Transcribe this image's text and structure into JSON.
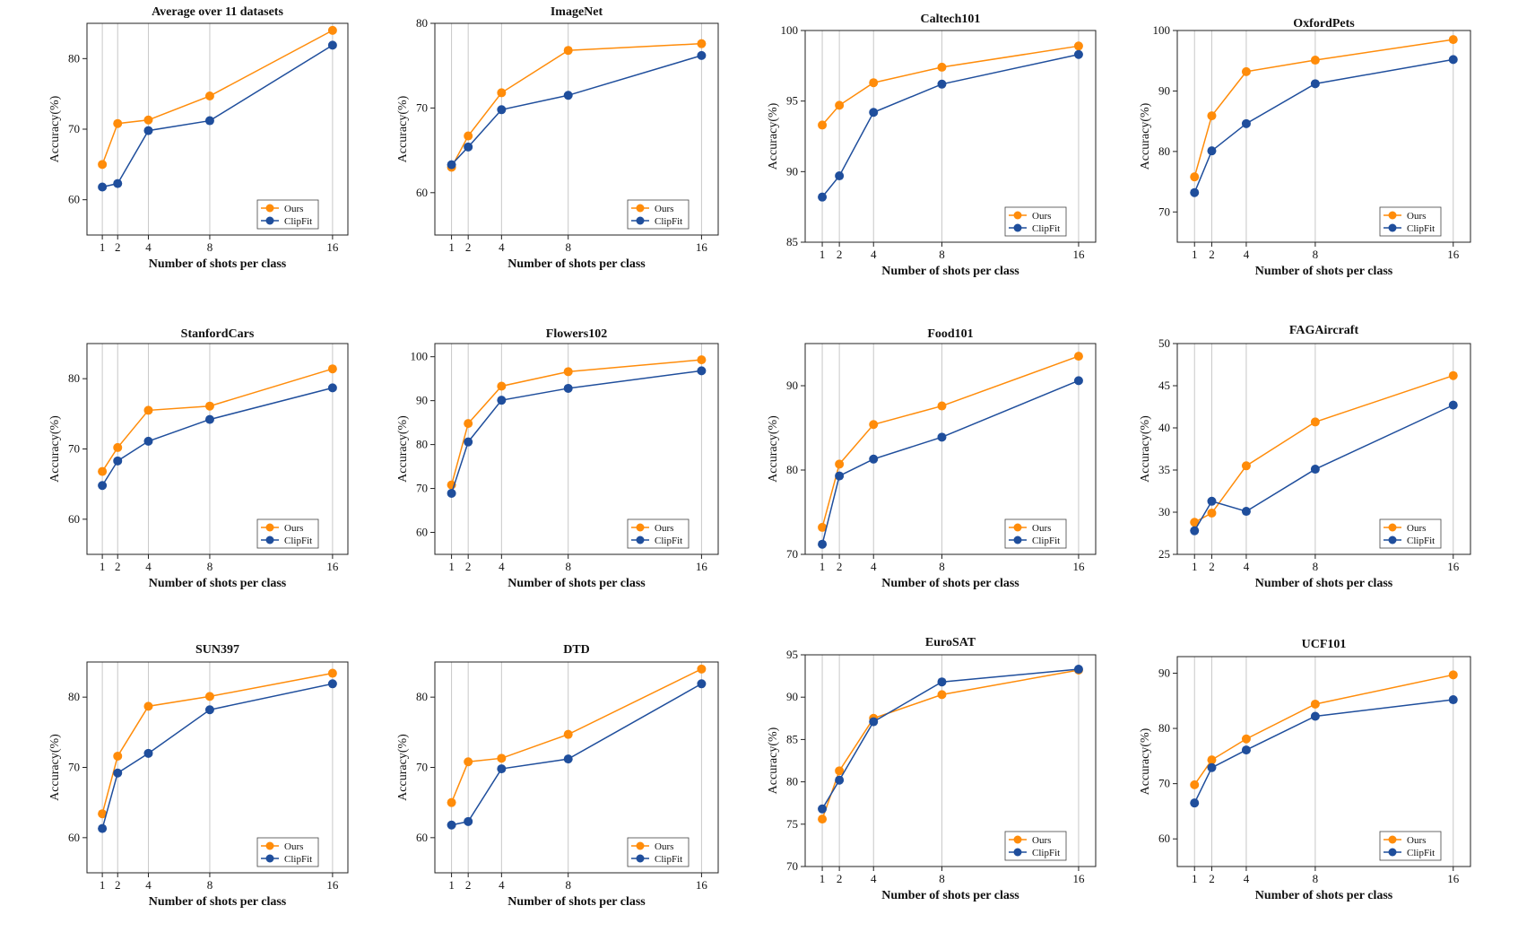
{
  "legend_labels": [
    "Ours",
    "ClipFit"
  ],
  "colors": {
    "ours": "#ff8c0a",
    "clipfit": "#1f4e9c",
    "grid": "#c8c8c8",
    "axis": "#222222"
  },
  "chart_data": [
    {
      "type": "line",
      "title": "Average over 11 datasets",
      "xlabel": "Number of shots per class",
      "ylabel": "Accuracy(%)",
      "x": [
        1,
        2,
        4,
        8,
        16
      ],
      "xlim": [
        0,
        17
      ],
      "ylim": [
        55,
        85
      ],
      "yticks": [
        60,
        70,
        80
      ],
      "grid": "vertical",
      "legend": "lower-right",
      "series": [
        {
          "name": "Ours",
          "values": [
            65.0,
            70.8,
            71.3,
            74.7,
            84.0
          ]
        },
        {
          "name": "ClipFit",
          "values": [
            61.8,
            62.3,
            69.8,
            71.2,
            81.9
          ]
        }
      ]
    },
    {
      "type": "line",
      "title": "ImageNet",
      "xlabel": "Number of shots per class",
      "ylabel": "Accuracy(%)",
      "x": [
        1,
        2,
        4,
        8,
        16
      ],
      "xlim": [
        0,
        17
      ],
      "ylim": [
        55,
        80
      ],
      "yticks": [
        60,
        70,
        80
      ],
      "grid": "vertical",
      "legend": "lower-right",
      "series": [
        {
          "name": "Ours",
          "values": [
            63.0,
            66.7,
            71.8,
            76.8,
            77.6
          ]
        },
        {
          "name": "ClipFit",
          "values": [
            63.3,
            65.4,
            69.8,
            71.5,
            76.2
          ]
        }
      ]
    },
    {
      "type": "line",
      "title": "Caltech101",
      "xlabel": "Number of shots per class",
      "ylabel": "Accuracy(%)",
      "x": [
        1,
        2,
        4,
        8,
        16
      ],
      "xlim": [
        0,
        17
      ],
      "ylim": [
        85,
        100
      ],
      "yticks": [
        85,
        90,
        95,
        100
      ],
      "grid": "vertical",
      "legend": "lower-right",
      "series": [
        {
          "name": "Ours",
          "values": [
            93.3,
            94.7,
            96.3,
            97.4,
            98.9
          ]
        },
        {
          "name": "ClipFit",
          "values": [
            88.2,
            89.7,
            94.2,
            96.2,
            98.3
          ]
        }
      ]
    },
    {
      "type": "line",
      "title": "OxfordPets",
      "xlabel": "Number of shots per class",
      "ylabel": "Accuracy(%)",
      "x": [
        1,
        2,
        4,
        8,
        16
      ],
      "xlim": [
        0,
        17
      ],
      "ylim": [
        65,
        100
      ],
      "yticks": [
        70,
        80,
        90,
        100
      ],
      "grid": "vertical",
      "legend": "lower-right",
      "series": [
        {
          "name": "Ours",
          "values": [
            75.8,
            85.9,
            93.2,
            95.1,
            98.5
          ]
        },
        {
          "name": "ClipFit",
          "values": [
            73.2,
            80.1,
            84.6,
            91.2,
            95.2
          ]
        }
      ]
    },
    {
      "type": "line",
      "title": "StanfordCars",
      "xlabel": "Number of shots per class",
      "ylabel": "Accuracy(%)",
      "x": [
        1,
        2,
        4,
        8,
        16
      ],
      "xlim": [
        0,
        17
      ],
      "ylim": [
        55,
        85
      ],
      "yticks": [
        60,
        70,
        80
      ],
      "grid": "vertical",
      "legend": "lower-right",
      "series": [
        {
          "name": "Ours",
          "values": [
            66.8,
            70.2,
            75.5,
            76.1,
            81.4
          ]
        },
        {
          "name": "ClipFit",
          "values": [
            64.8,
            68.3,
            71.1,
            74.2,
            78.7
          ]
        }
      ]
    },
    {
      "type": "line",
      "title": "Flowers102",
      "xlabel": "Number of shots per class",
      "ylabel": "Accuracy(%)",
      "x": [
        1,
        2,
        4,
        8,
        16
      ],
      "xlim": [
        0,
        17
      ],
      "ylim": [
        55,
        103
      ],
      "yticks": [
        60,
        70,
        80,
        90,
        100
      ],
      "grid": "vertical",
      "legend": "lower-right",
      "series": [
        {
          "name": "Ours",
          "values": [
            70.8,
            84.8,
            93.3,
            96.6,
            99.3
          ]
        },
        {
          "name": "ClipFit",
          "values": [
            68.9,
            80.6,
            90.1,
            92.8,
            96.8
          ]
        }
      ]
    },
    {
      "type": "line",
      "title": "Food101",
      "xlabel": "Number of shots per class",
      "ylabel": "Accuracy(%)",
      "x": [
        1,
        2,
        4,
        8,
        16
      ],
      "xlim": [
        0,
        17
      ],
      "ylim": [
        70,
        95
      ],
      "yticks": [
        70,
        80,
        90
      ],
      "grid": "vertical",
      "legend": "lower-right",
      "series": [
        {
          "name": "Ours",
          "values": [
            73.2,
            80.7,
            85.4,
            87.6,
            93.5
          ]
        },
        {
          "name": "ClipFit",
          "values": [
            71.2,
            79.3,
            81.3,
            83.9,
            90.6
          ]
        }
      ]
    },
    {
      "type": "line",
      "title": "FAGAircraft",
      "xlabel": "Number of shots per class",
      "ylabel": "Accuracy(%)",
      "x": [
        1,
        2,
        4,
        8,
        16
      ],
      "xlim": [
        0,
        17
      ],
      "ylim": [
        25,
        50
      ],
      "yticks": [
        25,
        30,
        35,
        40,
        45,
        50
      ],
      "grid": "vertical",
      "legend": "lower-right",
      "series": [
        {
          "name": "Ours",
          "values": [
            28.8,
            29.9,
            35.5,
            40.7,
            46.2
          ]
        },
        {
          "name": "ClipFit",
          "values": [
            27.8,
            31.3,
            30.1,
            35.1,
            42.7
          ]
        }
      ]
    },
    {
      "type": "line",
      "title": "SUN397",
      "xlabel": "Number of shots per class",
      "ylabel": "Accuracy(%)",
      "x": [
        1,
        2,
        4,
        8,
        16
      ],
      "xlim": [
        0,
        17
      ],
      "ylim": [
        55,
        85
      ],
      "yticks": [
        60,
        70,
        80
      ],
      "grid": "vertical",
      "legend": "lower-right",
      "series": [
        {
          "name": "Ours",
          "values": [
            63.4,
            71.6,
            78.7,
            80.1,
            83.4
          ]
        },
        {
          "name": "ClipFit",
          "values": [
            61.3,
            69.2,
            72.0,
            78.2,
            81.9
          ]
        }
      ]
    },
    {
      "type": "line",
      "title": "DTD",
      "xlabel": "Number of shots per class",
      "ylabel": "Accuracy(%)",
      "x": [
        1,
        2,
        4,
        8,
        16
      ],
      "xlim": [
        0,
        17
      ],
      "ylim": [
        55,
        85
      ],
      "yticks": [
        60,
        70,
        80
      ],
      "grid": "vertical",
      "legend": "lower-right",
      "series": [
        {
          "name": "Ours",
          "values": [
            65.0,
            70.8,
            71.3,
            74.7,
            84.0
          ]
        },
        {
          "name": "ClipFit",
          "values": [
            61.8,
            62.3,
            69.8,
            71.2,
            81.9
          ]
        }
      ]
    },
    {
      "type": "line",
      "title": "EuroSAT",
      "xlabel": "Number of shots per class",
      "ylabel": "Accuracy(%)",
      "x": [
        1,
        2,
        4,
        8,
        16
      ],
      "xlim": [
        0,
        17
      ],
      "ylim": [
        70,
        95
      ],
      "yticks": [
        70,
        75,
        80,
        85,
        90,
        95
      ],
      "grid": "vertical",
      "legend": "lower-right",
      "series": [
        {
          "name": "Ours",
          "values": [
            75.6,
            81.3,
            87.5,
            90.3,
            93.2
          ]
        },
        {
          "name": "ClipFit",
          "values": [
            76.8,
            80.2,
            87.1,
            91.8,
            93.3
          ]
        }
      ]
    },
    {
      "type": "line",
      "title": "UCF101",
      "xlabel": "Number of shots per class",
      "ylabel": "Accuracy(%)",
      "x": [
        1,
        2,
        4,
        8,
        16
      ],
      "xlim": [
        0,
        17
      ],
      "ylim": [
        55,
        93
      ],
      "yticks": [
        60,
        70,
        80,
        90
      ],
      "grid": "vertical",
      "legend": "lower-right",
      "series": [
        {
          "name": "Ours",
          "values": [
            69.8,
            74.3,
            78.1,
            84.4,
            89.7
          ]
        },
        {
          "name": "ClipFit",
          "values": [
            66.5,
            72.9,
            76.1,
            82.2,
            85.2
          ]
        }
      ]
    }
  ]
}
